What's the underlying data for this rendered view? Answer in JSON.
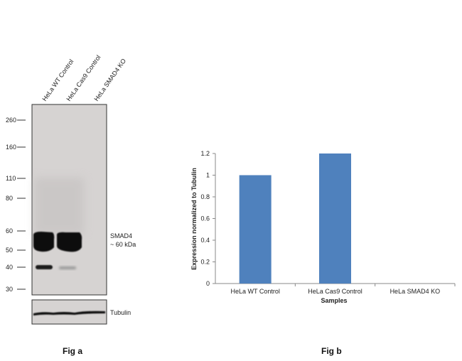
{
  "figure_a": {
    "caption": "Fig a",
    "lane_labels": [
      "HeLa WT Control",
      "HeLa Cas9 Control",
      "HeLa SMAD4 KO"
    ],
    "mw_markers": [
      "260",
      "160",
      "110",
      "80",
      "60",
      "50",
      "40",
      "30"
    ],
    "band_label_line1": "SMAD4",
    "band_label_line2": "~ 60 kDa",
    "loading_control_label": "Tubulin"
  },
  "figure_b": {
    "caption": "Fig b"
  },
  "chart_data": {
    "type": "bar",
    "categories": [
      "HeLa WT Control",
      "HeLa Cas9 Control",
      "HeLa SMAD4 KO"
    ],
    "values": [
      1.0,
      1.2,
      0.0
    ],
    "title": "",
    "xlabel": "Samples",
    "ylabel": "Expression  normalized to Tubulin",
    "ylim": [
      0,
      1.2
    ],
    "yticks": [
      "0",
      "0.2",
      "0.4",
      "0.6",
      "0.8",
      "1",
      "1.2"
    ],
    "bar_color": "#4f81bd",
    "grid": false,
    "legend": "none"
  }
}
